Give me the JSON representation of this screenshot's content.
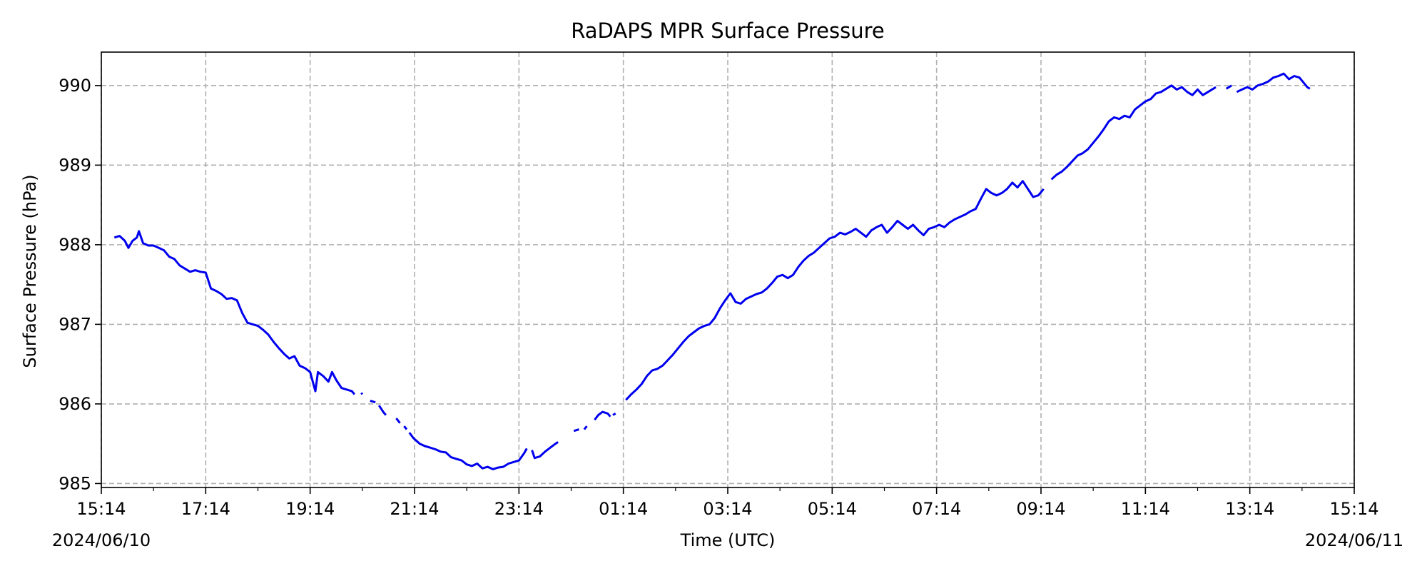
{
  "chart_data": {
    "type": "line",
    "title": "RaDAPS MPR Surface Pressure",
    "xlabel": "Time (UTC)",
    "ylabel": "Surface Pressure (hPa)",
    "date_start_label": "2024/06/10",
    "date_end_label": "2024/06/11",
    "x_unit": "hours since 2024/06/10 15:14 UTC",
    "xlim": [
      0,
      24
    ],
    "ylim": [
      984.95,
      990.42
    ],
    "grid": true,
    "line_color": "#0000ee",
    "x_ticks": [
      {
        "x": 0,
        "label": "15:14"
      },
      {
        "x": 2,
        "label": "17:14"
      },
      {
        "x": 4,
        "label": "19:14"
      },
      {
        "x": 6,
        "label": "21:14"
      },
      {
        "x": 8,
        "label": "23:14"
      },
      {
        "x": 10,
        "label": "01:14"
      },
      {
        "x": 12,
        "label": "03:14"
      },
      {
        "x": 14,
        "label": "05:14"
      },
      {
        "x": 16,
        "label": "07:14"
      },
      {
        "x": 18,
        "label": "09:14"
      },
      {
        "x": 20,
        "label": "11:14"
      },
      {
        "x": 22,
        "label": "13:14"
      },
      {
        "x": 24,
        "label": "15:14"
      }
    ],
    "y_ticks": [
      {
        "y": 985,
        "label": "985"
      },
      {
        "y": 986,
        "label": "986"
      },
      {
        "y": 987,
        "label": "987"
      },
      {
        "y": 988,
        "label": "988"
      },
      {
        "y": 989,
        "label": "989"
      },
      {
        "y": 990,
        "label": "990"
      }
    ],
    "series": [
      {
        "segments": [
          [
            [
              0.25,
              988.09
            ],
            [
              0.35,
              988.11
            ],
            [
              0.45,
              988.05
            ],
            [
              0.52,
              987.96
            ],
            [
              0.6,
              988.05
            ],
            [
              0.68,
              988.09
            ],
            [
              0.72,
              988.17
            ],
            [
              0.8,
              988.02
            ],
            [
              0.9,
              987.99
            ],
            [
              1.0,
              987.99
            ],
            [
              1.1,
              987.96
            ],
            [
              1.2,
              987.93
            ],
            [
              1.3,
              987.85
            ],
            [
              1.4,
              987.82
            ],
            [
              1.5,
              987.74
            ],
            [
              1.6,
              987.7
            ],
            [
              1.7,
              987.66
            ],
            [
              1.8,
              987.68
            ],
            [
              1.9,
              987.66
            ],
            [
              2.0,
              987.65
            ],
            [
              2.1,
              987.45
            ],
            [
              2.2,
              987.42
            ],
            [
              2.3,
              987.38
            ],
            [
              2.4,
              987.32
            ],
            [
              2.5,
              987.33
            ],
            [
              2.6,
              987.3
            ],
            [
              2.7,
              987.14
            ],
            [
              2.8,
              987.02
            ],
            [
              2.9,
              987.0
            ],
            [
              3.0,
              986.98
            ],
            [
              3.1,
              986.93
            ],
            [
              3.2,
              986.87
            ],
            [
              3.3,
              986.78
            ],
            [
              3.4,
              986.7
            ],
            [
              3.5,
              986.63
            ],
            [
              3.6,
              986.57
            ],
            [
              3.7,
              986.6
            ],
            [
              3.8,
              986.48
            ],
            [
              3.9,
              986.45
            ],
            [
              4.0,
              986.4
            ],
            [
              4.1,
              986.16
            ],
            [
              4.15,
              986.4
            ],
            [
              4.25,
              986.35
            ],
            [
              4.35,
              986.28
            ],
            [
              4.42,
              986.4
            ],
            [
              4.5,
              986.3
            ],
            [
              4.6,
              986.2
            ],
            [
              4.7,
              986.18
            ],
            [
              4.8,
              986.16
            ],
            [
              4.85,
              986.12
            ]
          ],
          [
            [
              4.98,
              986.14
            ],
            [
              5.0,
              986.12
            ]
          ],
          [
            [
              5.15,
              986.04
            ],
            [
              5.25,
              986.02
            ]
          ],
          [
            [
              5.32,
              985.98
            ],
            [
              5.4,
              985.9
            ],
            [
              5.45,
              985.86
            ]
          ],
          [
            [
              5.65,
              985.82
            ],
            [
              5.72,
              985.76
            ]
          ],
          [
            [
              5.8,
              985.72
            ],
            [
              5.85,
              985.68
            ]
          ],
          [
            [
              5.9,
              985.64
            ],
            [
              5.98,
              985.57
            ],
            [
              6.1,
              985.5
            ],
            [
              6.2,
              985.47
            ],
            [
              6.3,
              985.45
            ],
            [
              6.4,
              985.43
            ],
            [
              6.5,
              985.4
            ],
            [
              6.6,
              985.39
            ],
            [
              6.7,
              985.33
            ],
            [
              6.8,
              985.31
            ],
            [
              6.9,
              985.29
            ],
            [
              7.0,
              985.24
            ],
            [
              7.1,
              985.22
            ],
            [
              7.2,
              985.25
            ],
            [
              7.3,
              985.19
            ],
            [
              7.4,
              985.21
            ],
            [
              7.5,
              985.18
            ],
            [
              7.6,
              985.2
            ],
            [
              7.7,
              985.21
            ],
            [
              7.8,
              985.25
            ],
            [
              7.9,
              985.27
            ],
            [
              8.0,
              985.29
            ],
            [
              8.1,
              985.38
            ],
            [
              8.15,
              985.44
            ]
          ],
          [
            [
              8.25,
              985.42
            ],
            [
              8.3,
              985.32
            ],
            [
              8.4,
              985.34
            ],
            [
              8.5,
              985.4
            ],
            [
              8.6,
              985.45
            ],
            [
              8.7,
              985.5
            ],
            [
              8.75,
              985.52
            ]
          ],
          [
            [
              9.05,
              985.66
            ],
            [
              9.15,
              985.68
            ]
          ],
          [
            [
              9.25,
              985.68
            ],
            [
              9.3,
              985.72
            ]
          ],
          [
            [
              9.45,
              985.8
            ],
            [
              9.52,
              985.86
            ],
            [
              9.6,
              985.9
            ],
            [
              9.7,
              985.88
            ],
            [
              9.75,
              985.84
            ]
          ],
          [
            [
              9.8,
              985.86
            ],
            [
              9.85,
              985.88
            ]
          ],
          [
            [
              10.05,
              986.05
            ],
            [
              10.15,
              986.12
            ],
            [
              10.25,
              986.18
            ],
            [
              10.35,
              986.25
            ],
            [
              10.45,
              986.35
            ],
            [
              10.55,
              986.42
            ],
            [
              10.65,
              986.44
            ],
            [
              10.75,
              986.48
            ],
            [
              10.85,
              986.55
            ],
            [
              10.95,
              986.62
            ],
            [
              11.05,
              986.7
            ],
            [
              11.15,
              986.78
            ],
            [
              11.25,
              986.85
            ],
            [
              11.35,
              986.9
            ],
            [
              11.45,
              986.95
            ],
            [
              11.55,
              986.98
            ],
            [
              11.65,
              987.0
            ],
            [
              11.75,
              987.08
            ],
            [
              11.85,
              987.2
            ],
            [
              11.95,
              987.3
            ],
            [
              12.05,
              987.39
            ],
            [
              12.15,
              987.28
            ],
            [
              12.25,
              987.26
            ],
            [
              12.35,
              987.32
            ],
            [
              12.45,
              987.35
            ],
            [
              12.55,
              987.38
            ],
            [
              12.65,
              987.4
            ],
            [
              12.75,
              987.45
            ],
            [
              12.85,
              987.52
            ],
            [
              12.95,
              987.6
            ],
            [
              13.05,
              987.62
            ],
            [
              13.15,
              987.58
            ],
            [
              13.25,
              987.62
            ],
            [
              13.35,
              987.72
            ],
            [
              13.45,
              987.8
            ],
            [
              13.55,
              987.86
            ],
            [
              13.65,
              987.9
            ],
            [
              13.75,
              987.96
            ],
            [
              13.85,
              988.02
            ],
            [
              13.95,
              988.08
            ],
            [
              14.05,
              988.1
            ],
            [
              14.15,
              988.15
            ],
            [
              14.25,
              988.13
            ],
            [
              14.35,
              988.16
            ],
            [
              14.45,
              988.2
            ],
            [
              14.55,
              988.15
            ],
            [
              14.65,
              988.1
            ],
            [
              14.75,
              988.18
            ],
            [
              14.85,
              988.22
            ],
            [
              14.95,
              988.25
            ],
            [
              15.05,
              988.15
            ],
            [
              15.15,
              988.22
            ],
            [
              15.25,
              988.3
            ],
            [
              15.35,
              988.25
            ],
            [
              15.45,
              988.2
            ],
            [
              15.55,
              988.25
            ],
            [
              15.65,
              988.18
            ],
            [
              15.75,
              988.12
            ],
            [
              15.85,
              988.2
            ],
            [
              15.95,
              988.22
            ],
            [
              16.05,
              988.25
            ],
            [
              16.15,
              988.22
            ],
            [
              16.25,
              988.28
            ],
            [
              16.35,
              988.32
            ],
            [
              16.45,
              988.35
            ],
            [
              16.55,
              988.38
            ],
            [
              16.65,
              988.42
            ],
            [
              16.75,
              988.45
            ],
            [
              16.85,
              988.58
            ],
            [
              16.95,
              988.7
            ],
            [
              17.05,
              988.65
            ],
            [
              17.15,
              988.62
            ],
            [
              17.25,
              988.65
            ],
            [
              17.35,
              988.7
            ],
            [
              17.45,
              988.78
            ],
            [
              17.55,
              988.72
            ],
            [
              17.65,
              988.8
            ],
            [
              17.75,
              988.7
            ],
            [
              17.85,
              988.6
            ],
            [
              17.95,
              988.62
            ],
            [
              18.05,
              988.7
            ]
          ],
          [
            [
              18.2,
              988.82
            ],
            [
              18.3,
              988.88
            ],
            [
              18.4,
              988.92
            ],
            [
              18.5,
              988.98
            ],
            [
              18.6,
              989.05
            ],
            [
              18.7,
              989.12
            ],
            [
              18.8,
              989.15
            ],
            [
              18.9,
              989.2
            ],
            [
              19.0,
              989.28
            ],
            [
              19.1,
              989.36
            ],
            [
              19.2,
              989.45
            ],
            [
              19.3,
              989.55
            ],
            [
              19.4,
              989.6
            ],
            [
              19.5,
              989.58
            ],
            [
              19.6,
              989.62
            ],
            [
              19.7,
              989.6
            ],
            [
              19.8,
              989.7
            ],
            [
              19.9,
              989.75
            ],
            [
              20.0,
              989.8
            ],
            [
              20.1,
              989.83
            ],
            [
              20.2,
              989.9
            ],
            [
              20.3,
              989.92
            ],
            [
              20.4,
              989.96
            ],
            [
              20.5,
              990.0
            ],
            [
              20.6,
              989.95
            ],
            [
              20.7,
              989.98
            ],
            [
              20.8,
              989.92
            ],
            [
              20.9,
              989.88
            ],
            [
              21.0,
              989.95
            ],
            [
              21.1,
              989.88
            ],
            [
              21.2,
              989.92
            ],
            [
              21.3,
              989.96
            ],
            [
              21.35,
              989.98
            ]
          ],
          [
            [
              21.55,
              989.96
            ],
            [
              21.65,
              990.0
            ]
          ],
          [
            [
              21.75,
              989.92
            ],
            [
              21.85,
              989.95
            ],
            [
              21.95,
              989.98
            ],
            [
              22.05,
              989.95
            ],
            [
              22.15,
              990.0
            ],
            [
              22.25,
              990.02
            ],
            [
              22.35,
              990.05
            ],
            [
              22.45,
              990.1
            ],
            [
              22.55,
              990.12
            ],
            [
              22.65,
              990.15
            ],
            [
              22.75,
              990.08
            ],
            [
              22.85,
              990.12
            ],
            [
              22.95,
              990.1
            ],
            [
              23.05,
              990.02
            ],
            [
              23.1,
              989.98
            ],
            [
              23.15,
              989.96
            ]
          ]
        ]
      }
    ]
  }
}
